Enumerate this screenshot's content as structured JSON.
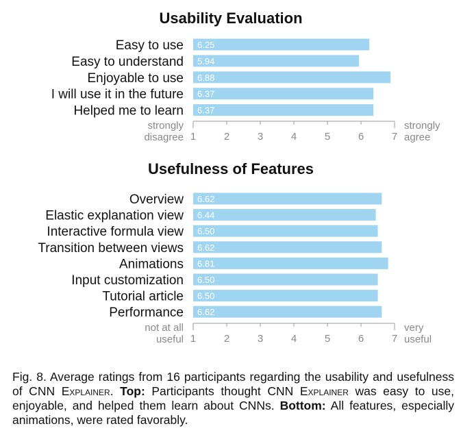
{
  "chart_data": [
    {
      "type": "bar",
      "title": "Usability Evaluation",
      "categories": [
        "Easy to use",
        "Easy to understand",
        "Enjoyable to use",
        "I will use it in the future",
        "Helped me to learn"
      ],
      "values": [
        6.25,
        5.94,
        6.88,
        6.37,
        6.37
      ],
      "value_labels": [
        "6.25",
        "5.94",
        "6.88",
        "6.37",
        "6.37"
      ],
      "xlim": [
        1,
        7
      ],
      "xticks": [
        "1",
        "2",
        "3",
        "4",
        "5",
        "6",
        "7"
      ],
      "left_label": [
        "strongly",
        "disagree"
      ],
      "right_label": [
        "strongly",
        "agree"
      ],
      "bar_color": "#9fd5f0"
    },
    {
      "type": "bar",
      "title": "Usefulness of Features",
      "categories": [
        "Overview",
        "Elastic explanation view",
        "Interactive formula view",
        "Transition between views",
        "Animations",
        "Input customization",
        "Tutorial article",
        "Performance"
      ],
      "values": [
        6.62,
        6.44,
        6.5,
        6.62,
        6.81,
        6.5,
        6.5,
        6.62
      ],
      "value_labels": [
        "6.62",
        "6.44",
        "6.50",
        "6.62",
        "6.81",
        "6.50",
        "6.50",
        "6.62"
      ],
      "xlim": [
        1,
        7
      ],
      "xticks": [
        "1",
        "2",
        "3",
        "4",
        "5",
        "6",
        "7"
      ],
      "left_label": [
        "not at all",
        "useful"
      ],
      "right_label": [
        "very",
        "useful"
      ],
      "bar_color": "#9fd5f0"
    }
  ],
  "caption": {
    "fig": "Fig. 8.",
    "t1": "  Average ratings from 16 participants regarding the usability and usefulness of CNN ",
    "sc1": "Explainer",
    "t2": ". ",
    "top": "Top:",
    "t3": " Participants thought CNN ",
    "sc2": "Explainer",
    "t4": " was easy to use, enjoyable, and helped them learn about CNNs. ",
    "bottom": "Bottom:",
    "t5": " All features, especially animations, were rated favorably."
  }
}
